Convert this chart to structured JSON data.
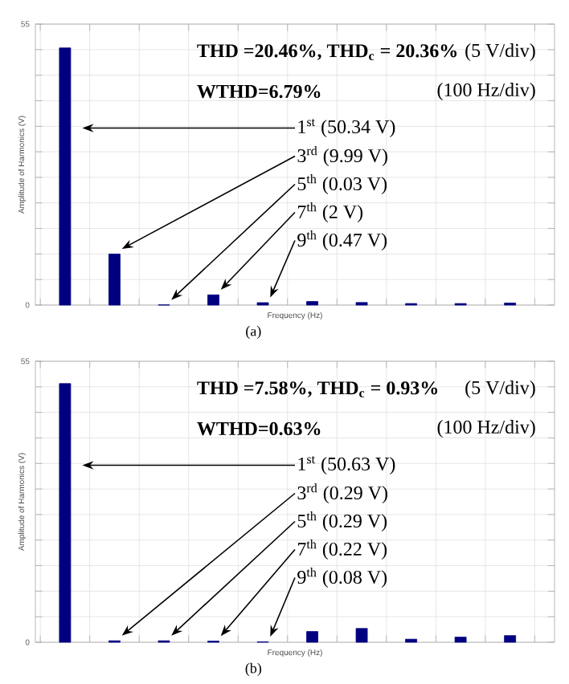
{
  "chart_data": [
    {
      "type": "bar",
      "xlabel": "Frequency (Hz)",
      "ylabel": "Amplitude of Harmonics (V)",
      "categories": [
        null,
        null,
        null,
        null,
        null,
        null,
        null,
        null,
        null,
        null
      ],
      "values": [
        50.34,
        9.99,
        0.03,
        2,
        0.47,
        0.7,
        0.5,
        0.3,
        0.3,
        0.4
      ],
      "color": "#000080",
      "ylim": [
        0,
        55
      ],
      "yticks": [
        0,
        {
          "value": 5,
          "label": null
        },
        {
          "value": 10,
          "label": null
        },
        {
          "value": 15,
          "label": null
        },
        {
          "value": 20,
          "label": null
        },
        {
          "value": 25,
          "label": null
        },
        {
          "value": 30,
          "label": null
        },
        {
          "value": 35,
          "label": null
        },
        {
          "value": 40,
          "label": null
        },
        {
          "value": 45,
          "label": null
        },
        {
          "value": 50,
          "label": null
        },
        55
      ],
      "grid": true,
      "annotations": [
        "**THD =20.46%, THD$_{c}$ = 20.36%**",
        "**WTHD=6.79%**",
        "(5 V/div)",
        "(100 Hz/div)",
        "1$^{st}$ (50.34 V)",
        "3$^{rd}$ (9.99 V)",
        "5$^{th}$ (0.03 V)",
        "7$^{th}$ (2 V)",
        "9$^{th}$ (0.47 V)",
        "(a)"
      ]
    },
    {
      "type": "bar",
      "xlabel": "Frequency (Hz)",
      "ylabel": "Amplitude of Harmonics (V)",
      "categories": [
        null,
        null,
        null,
        null,
        null,
        null,
        null,
        null,
        null,
        null
      ],
      "values": [
        50.63,
        0.29,
        0.29,
        0.22,
        0.08,
        2.1,
        2.7,
        0.6,
        1.0,
        1.3
      ],
      "color": "#000080",
      "ylim": [
        0,
        55
      ],
      "yticks": [
        0,
        {
          "value": 5,
          "label": null
        },
        {
          "value": 10,
          "label": null
        },
        {
          "value": 15,
          "label": null
        },
        {
          "value": 20,
          "label": null
        },
        {
          "value": 25,
          "label": null
        },
        {
          "value": 30,
          "label": null
        },
        {
          "value": 35,
          "label": null
        },
        {
          "value": 40,
          "label": null
        },
        {
          "value": 45,
          "label": null
        },
        {
          "value": 50,
          "label": null
        },
        55
      ],
      "grid": true,
      "annotations": [
        "**THD =7.58%, THD$_{c}$ = 0.93%**",
        "**WTHD=0.63%**",
        "(5 V/div)",
        "(100 Hz/div)",
        "1$^{st}$ (50.63 V)",
        "3$^{rd}$ (0.29 V)",
        "5$^{th}$ (0.29 V)",
        "7$^{th}$ (0.22 V)",
        "9$^{th}$ (0.08 V)",
        "(b)"
      ]
    }
  ]
}
